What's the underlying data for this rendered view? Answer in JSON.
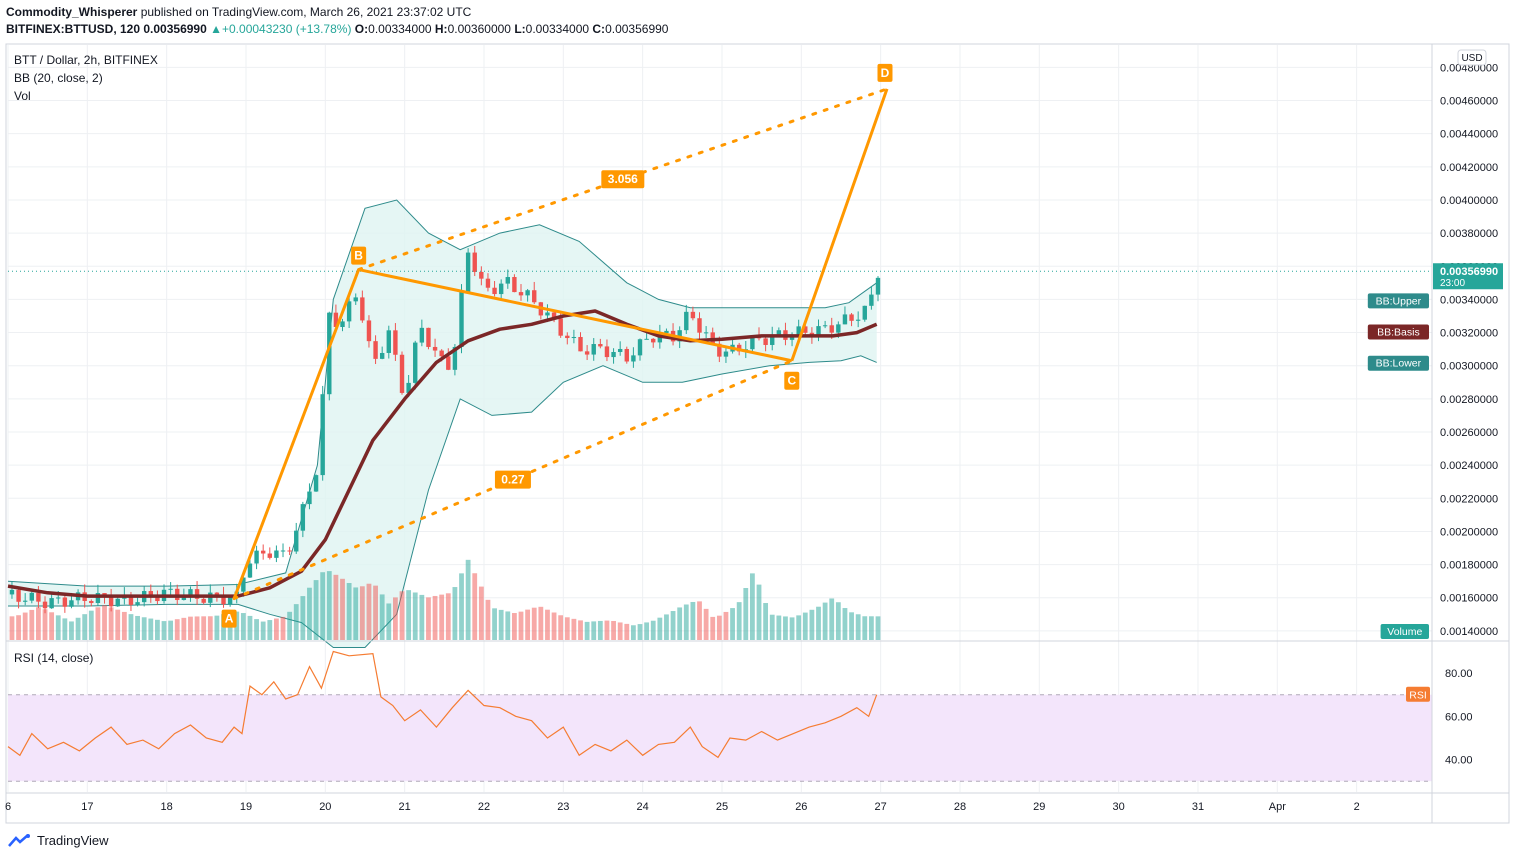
{
  "header": {
    "author": "Commodity_Whisperer",
    "published": "published on TradingView.com, March 26, 2021 23:37:02 UTC",
    "symbol": "BITFINEX:BTTUSD, 120",
    "last": "0.00356990",
    "change": "+0.00043230 (+13.78%)",
    "o_label": "O:",
    "o": "0.00334000",
    "h_label": "H:",
    "h": "0.00360000",
    "l_label": "L:",
    "l": "0.00334000",
    "c_label": "C:",
    "c": "0.00356990"
  },
  "legend": {
    "title": "BTT / Dollar, 2h, BITFINEX",
    "bb": "BB (20, close, 2)",
    "vol": "Vol",
    "rsi": "RSI (14, close)"
  },
  "footer": {
    "brand": "TradingView"
  },
  "chart_data": {
    "type": "candlestick",
    "currency": "USD",
    "price_axis": {
      "ticks": [
        "0.00480000",
        "0.00460000",
        "0.00440000",
        "0.00420000",
        "0.00400000",
        "0.00380000",
        "0.00360000",
        "0.00340000",
        "0.00320000",
        "0.00300000",
        "0.00280000",
        "0.00260000",
        "0.00240000",
        "0.00220000",
        "0.00200000",
        "0.00180000",
        "0.00160000",
        "0.00140000"
      ],
      "range": [
        0.001345,
        0.004935
      ],
      "last_price_label": "0.00356990",
      "countdown": "23:00"
    },
    "x_axis": {
      "ticks": [
        "6",
        "17",
        "18",
        "19",
        "20",
        "21",
        "22",
        "23",
        "24",
        "25",
        "26",
        "27",
        "28",
        "29",
        "30",
        "31",
        "Apr",
        "2"
      ],
      "tick_days": [
        16,
        17,
        18,
        19,
        20,
        21,
        22,
        23,
        24,
        25,
        26,
        27,
        28,
        29,
        30,
        31,
        32,
        33
      ],
      "range_days": [
        16.0,
        33.95
      ]
    },
    "labels": {
      "bb_upper": "BB:Upper",
      "bb_basis": "BB:Basis",
      "bb_lower": "BB:Lower",
      "volume": "Volume",
      "rsi": "RSI"
    },
    "price_path": [
      [
        16.0,
        0.00162
      ],
      [
        16.5,
        0.00157
      ],
      [
        17.0,
        0.0016
      ],
      [
        17.5,
        0.00158
      ],
      [
        18.0,
        0.00163
      ],
      [
        18.5,
        0.0016
      ],
      [
        18.9,
        0.0016
      ],
      [
        19.0,
        0.00182
      ],
      [
        19.3,
        0.00188
      ],
      [
        19.5,
        0.00185
      ],
      [
        19.7,
        0.0021
      ],
      [
        19.9,
        0.0024
      ],
      [
        20.05,
        0.0033
      ],
      [
        20.2,
        0.00325
      ],
      [
        20.4,
        0.00345
      ],
      [
        20.6,
        0.003
      ],
      [
        20.8,
        0.0032
      ],
      [
        21.0,
        0.0028
      ],
      [
        21.2,
        0.00325
      ],
      [
        21.4,
        0.00305
      ],
      [
        21.6,
        0.003
      ],
      [
        21.8,
        0.0037
      ],
      [
        22.0,
        0.00345
      ],
      [
        22.3,
        0.0035
      ],
      [
        22.6,
        0.0034
      ],
      [
        22.9,
        0.00325
      ],
      [
        23.2,
        0.0031
      ],
      [
        23.5,
        0.0031
      ],
      [
        23.8,
        0.00305
      ],
      [
        24.1,
        0.00318
      ],
      [
        24.4,
        0.00318
      ],
      [
        24.6,
        0.00332
      ],
      [
        24.9,
        0.0031
      ],
      [
        25.1,
        0.00308
      ],
      [
        25.4,
        0.00315
      ],
      [
        25.7,
        0.00318
      ],
      [
        26.0,
        0.0032
      ],
      [
        26.3,
        0.00322
      ],
      [
        26.6,
        0.00328
      ],
      [
        26.85,
        0.00334
      ],
      [
        26.95,
        0.00357
      ]
    ],
    "bb_upper": [
      [
        16.0,
        0.0017
      ],
      [
        17.0,
        0.00167
      ],
      [
        18.0,
        0.00167
      ],
      [
        18.9,
        0.00168
      ],
      [
        19.5,
        0.00175
      ],
      [
        19.9,
        0.0024
      ],
      [
        20.1,
        0.0034
      ],
      [
        20.5,
        0.00395
      ],
      [
        20.9,
        0.004
      ],
      [
        21.3,
        0.0038
      ],
      [
        21.7,
        0.0037
      ],
      [
        22.2,
        0.0038
      ],
      [
        22.7,
        0.00385
      ],
      [
        23.2,
        0.00375
      ],
      [
        23.8,
        0.0035
      ],
      [
        24.2,
        0.0034
      ],
      [
        24.6,
        0.00335
      ],
      [
        25.2,
        0.00335
      ],
      [
        25.8,
        0.00335
      ],
      [
        26.3,
        0.00335
      ],
      [
        26.6,
        0.00338
      ],
      [
        26.95,
        0.0035
      ]
    ],
    "bb_basis": [
      [
        16.0,
        0.00167
      ],
      [
        16.5,
        0.00163
      ],
      [
        17.0,
        0.00161
      ],
      [
        17.5,
        0.00161
      ],
      [
        18.0,
        0.00161
      ],
      [
        18.5,
        0.00161
      ],
      [
        18.9,
        0.00161
      ],
      [
        19.3,
        0.00166
      ],
      [
        19.7,
        0.00176
      ],
      [
        20.0,
        0.00195
      ],
      [
        20.3,
        0.00225
      ],
      [
        20.6,
        0.00255
      ],
      [
        21.0,
        0.0028
      ],
      [
        21.4,
        0.00302
      ],
      [
        21.8,
        0.00315
      ],
      [
        22.2,
        0.00322
      ],
      [
        22.6,
        0.00325
      ],
      [
        23.0,
        0.0033
      ],
      [
        23.4,
        0.00333
      ],
      [
        23.8,
        0.00325
      ],
      [
        24.2,
        0.00318
      ],
      [
        24.6,
        0.00315
      ],
      [
        25.0,
        0.00316
      ],
      [
        25.5,
        0.00318
      ],
      [
        26.0,
        0.00318
      ],
      [
        26.4,
        0.00318
      ],
      [
        26.7,
        0.0032
      ],
      [
        26.95,
        0.00325
      ]
    ],
    "bb_lower": [
      [
        16.0,
        0.00155
      ],
      [
        17.0,
        0.00155
      ],
      [
        18.0,
        0.00156
      ],
      [
        18.9,
        0.00156
      ],
      [
        19.3,
        0.0015
      ],
      [
        19.7,
        0.00145
      ],
      [
        20.1,
        0.0013
      ],
      [
        20.5,
        0.0013
      ],
      [
        20.9,
        0.0015
      ],
      [
        21.3,
        0.00225
      ],
      [
        21.7,
        0.0028
      ],
      [
        22.1,
        0.0027
      ],
      [
        22.6,
        0.00272
      ],
      [
        23.0,
        0.0029
      ],
      [
        23.5,
        0.003
      ],
      [
        24.0,
        0.0029
      ],
      [
        24.5,
        0.0029
      ],
      [
        25.0,
        0.00295
      ],
      [
        25.6,
        0.003
      ],
      [
        26.1,
        0.00302
      ],
      [
        26.5,
        0.00303
      ],
      [
        26.75,
        0.00306
      ],
      [
        26.95,
        0.00302
      ]
    ],
    "volume": [
      [
        16.1,
        0.25
      ],
      [
        16.4,
        0.35
      ],
      [
        16.8,
        0.2
      ],
      [
        17.2,
        0.4
      ],
      [
        17.6,
        0.3
      ],
      [
        18.0,
        0.25
      ],
      [
        18.3,
        0.35
      ],
      [
        18.6,
        0.4
      ],
      [
        18.9,
        0.55
      ],
      [
        19.2,
        0.3
      ],
      [
        19.5,
        0.35
      ],
      [
        19.8,
        0.7
      ],
      [
        20.0,
        0.9
      ],
      [
        20.2,
        0.75
      ],
      [
        20.4,
        0.6
      ],
      [
        20.6,
        0.65
      ],
      [
        20.8,
        0.4
      ],
      [
        21.0,
        0.55
      ],
      [
        21.3,
        0.45
      ],
      [
        21.6,
        0.5
      ],
      [
        21.8,
        0.85
      ],
      [
        22.1,
        0.35
      ],
      [
        22.4,
        0.3
      ],
      [
        22.7,
        0.4
      ],
      [
        23.0,
        0.3
      ],
      [
        23.3,
        0.25
      ],
      [
        23.6,
        0.3
      ],
      [
        23.9,
        0.25
      ],
      [
        24.2,
        0.4
      ],
      [
        24.5,
        0.55
      ],
      [
        24.7,
        0.6
      ],
      [
        24.9,
        0.3
      ],
      [
        25.2,
        0.45
      ],
      [
        25.4,
        0.85
      ],
      [
        25.6,
        0.3
      ],
      [
        25.9,
        0.25
      ],
      [
        26.2,
        0.35
      ],
      [
        26.4,
        0.45
      ],
      [
        26.6,
        0.3
      ],
      [
        26.8,
        0.25
      ]
    ],
    "rsi": {
      "ticks": [
        "80.00",
        "60.00",
        "40.00"
      ],
      "range": [
        25,
        93
      ],
      "overbought": 70,
      "oversold": 30,
      "values": [
        [
          16.0,
          46
        ],
        [
          16.15,
          42
        ],
        [
          16.3,
          52
        ],
        [
          16.5,
          45
        ],
        [
          16.7,
          48
        ],
        [
          16.9,
          44
        ],
        [
          17.1,
          50
        ],
        [
          17.3,
          55
        ],
        [
          17.5,
          47
        ],
        [
          17.7,
          49
        ],
        [
          17.9,
          45
        ],
        [
          18.1,
          52
        ],
        [
          18.3,
          56
        ],
        [
          18.5,
          50
        ],
        [
          18.7,
          48
        ],
        [
          18.85,
          55
        ],
        [
          18.95,
          52
        ],
        [
          19.05,
          74
        ],
        [
          19.2,
          70
        ],
        [
          19.35,
          76
        ],
        [
          19.5,
          68
        ],
        [
          19.65,
          70
        ],
        [
          19.8,
          83
        ],
        [
          19.95,
          73
        ],
        [
          20.1,
          90
        ],
        [
          20.3,
          88
        ],
        [
          20.6,
          89
        ],
        [
          20.7,
          69
        ],
        [
          20.85,
          65
        ],
        [
          21.0,
          58
        ],
        [
          21.2,
          63
        ],
        [
          21.4,
          55
        ],
        [
          21.6,
          64
        ],
        [
          21.8,
          72
        ],
        [
          22.0,
          65
        ],
        [
          22.2,
          64
        ],
        [
          22.4,
          60
        ],
        [
          22.6,
          58
        ],
        [
          22.8,
          50
        ],
        [
          23.0,
          55
        ],
        [
          23.2,
          42
        ],
        [
          23.4,
          47
        ],
        [
          23.6,
          44
        ],
        [
          23.8,
          49
        ],
        [
          24.0,
          42
        ],
        [
          24.2,
          47
        ],
        [
          24.4,
          48
        ],
        [
          24.6,
          55
        ],
        [
          24.75,
          46
        ],
        [
          24.95,
          41
        ],
        [
          25.1,
          50
        ],
        [
          25.3,
          49
        ],
        [
          25.5,
          53
        ],
        [
          25.7,
          49
        ],
        [
          25.9,
          52
        ],
        [
          26.1,
          55
        ],
        [
          26.3,
          57
        ],
        [
          26.5,
          60
        ],
        [
          26.7,
          64
        ],
        [
          26.85,
          60
        ],
        [
          26.95,
          70
        ]
      ]
    },
    "pattern": {
      "points": {
        "A": {
          "day": 18.85,
          "price": 0.001595
        },
        "B": {
          "day": 20.42,
          "price": 0.00358
        },
        "C": {
          "day": 25.88,
          "price": 0.00303
        },
        "D": {
          "day": 27.08,
          "price": 0.00467
        }
      },
      "ratios": {
        "AC": "0.27",
        "BD": "3.056"
      },
      "color": "#ff9800"
    },
    "colors": {
      "up": "#26a69a",
      "down": "#ef5350",
      "basis": "#7b2727",
      "band": "#2e8b8b",
      "band_fill": "#dff4f1",
      "rsi_line": "#f57c32",
      "rsi_fill": "#f3e5fb"
    }
  }
}
